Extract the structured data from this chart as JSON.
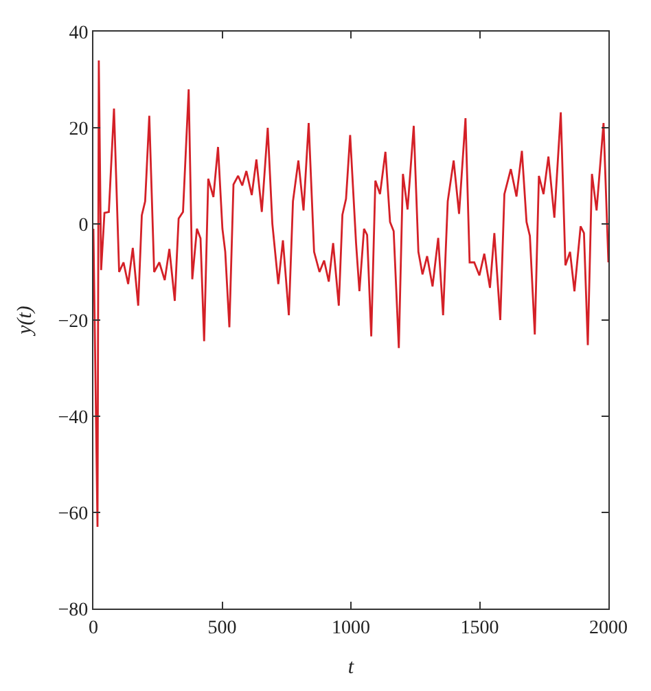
{
  "chart_data": {
    "type": "line",
    "xlabel": "t",
    "ylabel": "y(t)",
    "xlim": [
      0,
      2000
    ],
    "ylim": [
      -80,
      40
    ],
    "xticks": [
      0,
      500,
      1000,
      1500,
      2000
    ],
    "yticks": [
      -80,
      -60,
      -40,
      -20,
      0,
      20,
      40
    ],
    "marker": "none",
    "line_style": "solid",
    "x": [
      0,
      16,
      21,
      30,
      43,
      60,
      80,
      100,
      117,
      135,
      153,
      174,
      188,
      201,
      217,
      236,
      256,
      277,
      295,
      316,
      331,
      348,
      370,
      384,
      402,
      416,
      430,
      446,
      466,
      484,
      501,
      512,
      528,
      544,
      562,
      578,
      594,
      615,
      633,
      654,
      677,
      695,
      718,
      736,
      759,
      775,
      796,
      816,
      836,
      857,
      878,
      896,
      914,
      931,
      953,
      967,
      981,
      997,
      1020,
      1033,
      1051,
      1063,
      1079,
      1095,
      1113,
      1134,
      1152,
      1166,
      1186,
      1202,
      1220,
      1244,
      1262,
      1278,
      1296,
      1317,
      1339,
      1358,
      1376,
      1399,
      1420,
      1445,
      1461,
      1479,
      1499,
      1518,
      1540,
      1557,
      1580,
      1596,
      1621,
      1643,
      1664,
      1682,
      1695,
      1714,
      1730,
      1748,
      1767,
      1790,
      1815,
      1833,
      1851,
      1868,
      1892,
      1905,
      1920,
      1936,
      1954,
      1981,
      2000
    ],
    "series": [
      {
        "color": "#d42027",
        "values": [
          -1,
          -63,
          34,
          -9.6,
          2.3,
          2.5,
          24,
          -10,
          -8,
          -12.5,
          -5,
          -17,
          1.8,
          4.7,
          22.5,
          -10,
          -8,
          -11.7,
          -5.2,
          -16,
          1.1,
          2.5,
          28,
          -11.5,
          -1,
          -3,
          -24.4,
          9.4,
          5.6,
          16,
          -1,
          -5.8,
          -21.5,
          8.2,
          10,
          8,
          11,
          6,
          13.4,
          2.5,
          20,
          0,
          -12.5,
          -3.4,
          -19,
          4.7,
          13.2,
          2.8,
          21,
          -5.8,
          -10,
          -7.6,
          -12,
          -4,
          -17,
          1.9,
          5.2,
          18.5,
          -4,
          -14,
          -1,
          -2.3,
          -23.4,
          9,
          6.2,
          15,
          0.4,
          -1.5,
          -25.8,
          10.4,
          3,
          20.4,
          -5.8,
          -10.5,
          -6.7,
          -13,
          -2.9,
          -19,
          4.7,
          13.2,
          2.1,
          22,
          -8,
          -8,
          -10.7,
          -6.2,
          -13.3,
          -1.9,
          -20,
          6.2,
          11.4,
          5.7,
          15.2,
          0.4,
          -2.5,
          -23,
          10,
          6.2,
          14,
          1.3,
          23.2,
          -8.6,
          -5.8,
          -14,
          -0.5,
          -1.9,
          -25.2,
          10.4,
          2.8,
          21,
          -8
        ]
      }
    ]
  }
}
